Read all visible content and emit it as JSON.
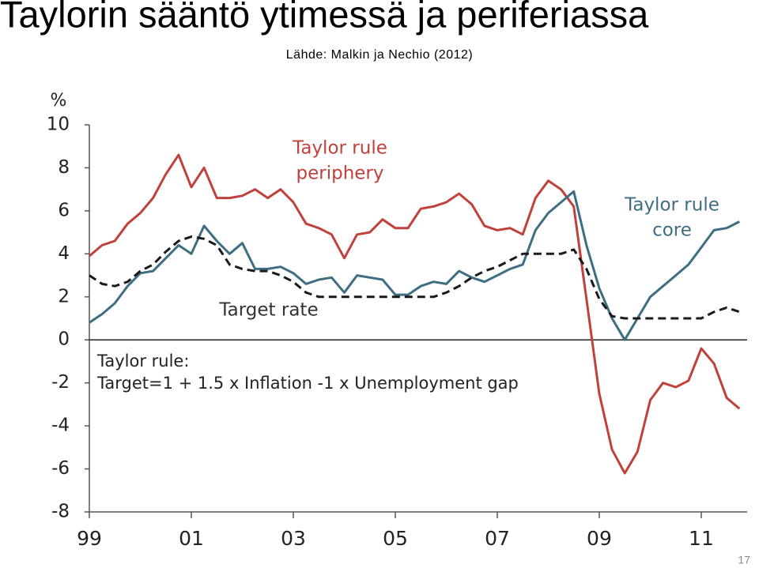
{
  "chart_data": {
    "type": "line",
    "title": "Taylorin sääntö ytimessä ja periferiassa",
    "subtitle": "Lähde: Malkin ja Nechio (2012)",
    "y_label": "%",
    "x": [
      1999,
      1999.25,
      1999.5,
      1999.75,
      2000,
      2000.25,
      2000.5,
      2000.75,
      2001,
      2001.25,
      2001.5,
      2001.75,
      2002,
      2002.25,
      2002.5,
      2002.75,
      2003,
      2003.25,
      2003.5,
      2003.75,
      2004,
      2004.25,
      2004.5,
      2004.75,
      2005,
      2005.25,
      2005.5,
      2005.75,
      2006,
      2006.25,
      2006.5,
      2006.75,
      2007,
      2007.25,
      2007.5,
      2007.75,
      2008,
      2008.25,
      2008.5,
      2008.75,
      2009,
      2009.25,
      2009.5,
      2009.75,
      2010,
      2010.25,
      2010.5,
      2010.75,
      2011,
      2011.25,
      2011.5,
      2011.75
    ],
    "series": [
      {
        "label": [
          "Taylor rule",
          "periphery"
        ],
        "color": "#c0413b",
        "dashed": false,
        "values": [
          3.9,
          4.4,
          4.6,
          5.4,
          5.9,
          6.6,
          7.7,
          8.6,
          7.1,
          8.0,
          6.6,
          6.6,
          6.7,
          7.0,
          6.6,
          7.0,
          6.4,
          5.4,
          5.2,
          4.9,
          3.8,
          4.9,
          5.0,
          5.6,
          5.2,
          5.2,
          6.1,
          6.2,
          6.4,
          6.8,
          6.3,
          5.3,
          5.1,
          5.2,
          4.9,
          6.6,
          7.4,
          7.0,
          6.2,
          1.9,
          -2.5,
          -5.1,
          -6.2,
          -5.2,
          -2.8,
          -2.0,
          -2.2,
          -1.9,
          -0.4,
          -1.1,
          -2.7,
          -3.2
        ]
      },
      {
        "label": [
          "Taylor rule",
          "core"
        ],
        "color": "#3e6e82",
        "dashed": false,
        "values": [
          0.8,
          1.2,
          1.7,
          2.5,
          3.1,
          3.2,
          3.8,
          4.4,
          4.0,
          5.3,
          4.6,
          4.0,
          4.5,
          3.3,
          3.3,
          3.4,
          3.1,
          2.6,
          2.8,
          2.9,
          2.2,
          3.0,
          2.9,
          2.8,
          2.1,
          2.1,
          2.5,
          2.7,
          2.6,
          3.2,
          2.9,
          2.7,
          3.0,
          3.3,
          3.5,
          5.1,
          5.9,
          6.4,
          6.9,
          4.4,
          2.4,
          1.0,
          0.0,
          1.0,
          2.0,
          2.5,
          3.0,
          3.5,
          4.3,
          5.1,
          5.2,
          5.5
        ]
      },
      {
        "label": [
          "Target rate"
        ],
        "color": "#1a1a1a",
        "dashed": true,
        "values": [
          3.0,
          2.6,
          2.5,
          2.7,
          3.2,
          3.5,
          4.1,
          4.6,
          4.8,
          4.7,
          4.4,
          3.5,
          3.3,
          3.2,
          3.2,
          3.0,
          2.7,
          2.2,
          2.0,
          2.0,
          2.0,
          2.0,
          2.0,
          2.0,
          2.0,
          2.0,
          2.0,
          2.0,
          2.2,
          2.5,
          2.9,
          3.2,
          3.4,
          3.7,
          4.0,
          4.0,
          4.0,
          4.0,
          4.2,
          3.3,
          1.9,
          1.1,
          1.0,
          1.0,
          1.0,
          1.0,
          1.0,
          1.0,
          1.0,
          1.3,
          1.5,
          1.3
        ]
      }
    ],
    "annotations": [
      "Taylor rule:",
      "Target=1 + 1.5 x Inflation -1 x Unemployment gap"
    ],
    "xlim": [
      1999,
      2011.9
    ],
    "xticks": [
      {
        "value": 1999,
        "label": "99"
      },
      {
        "value": 2001,
        "label": "01"
      },
      {
        "value": 2003,
        "label": "03"
      },
      {
        "value": 2005,
        "label": "05"
      },
      {
        "value": 2007,
        "label": "07"
      },
      {
        "value": 2009,
        "label": "09"
      },
      {
        "value": 2011,
        "label": "11"
      }
    ],
    "ylim": [
      -8,
      10
    ],
    "yticks": [
      10,
      8,
      6,
      4,
      2,
      0,
      -2,
      -4,
      -6,
      -8
    ]
  },
  "page_number": "17"
}
